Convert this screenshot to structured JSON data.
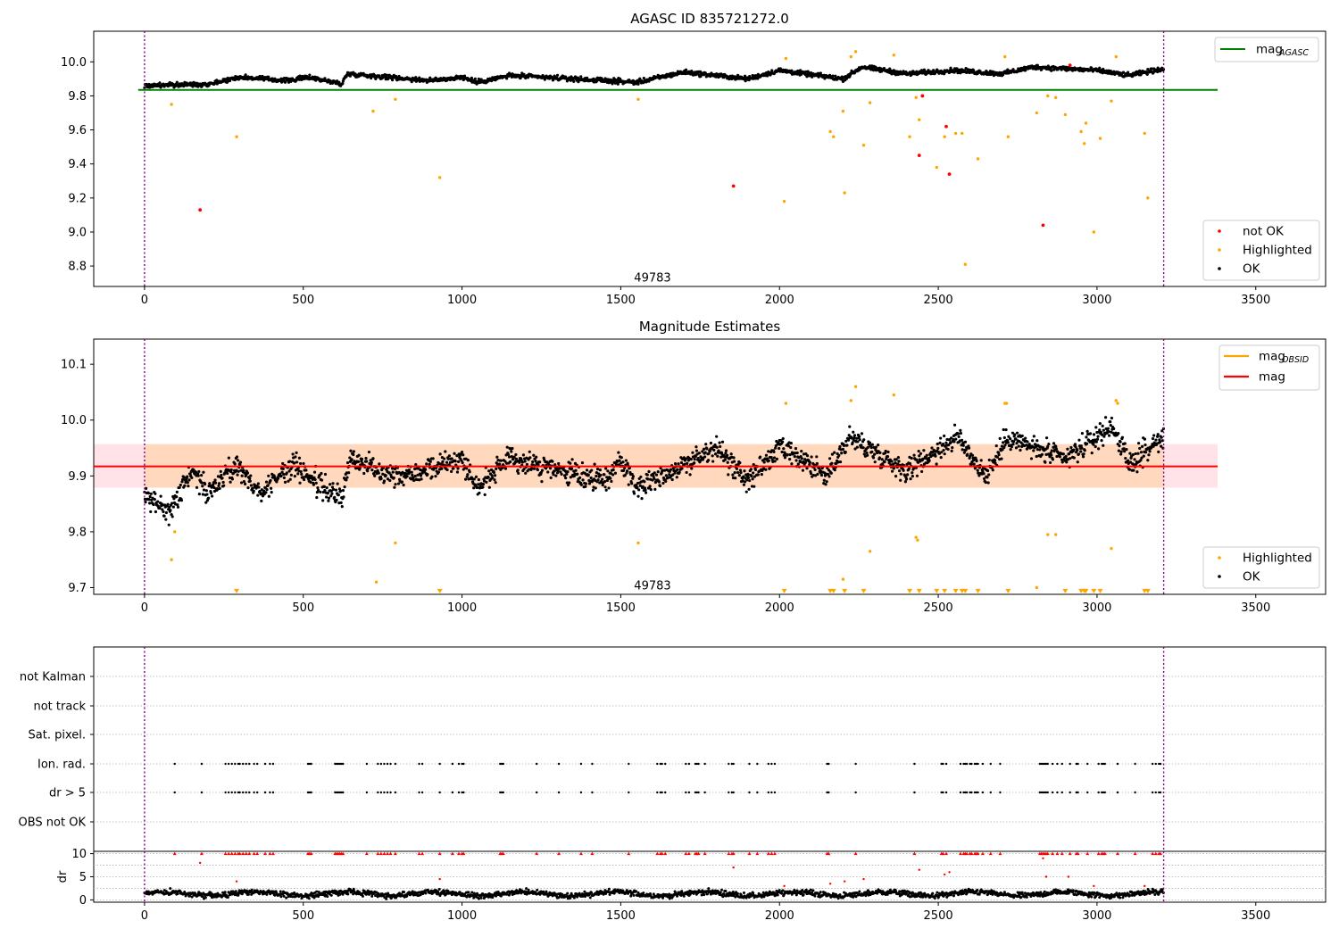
{
  "chart_data": [
    {
      "type": "scatter",
      "title": "AGASC ID 835721272.0",
      "xlim": [
        -160,
        3720
      ],
      "ylim": [
        8.68,
        10.18
      ],
      "x_ticks": [
        0,
        500,
        1000,
        1500,
        2000,
        2500,
        3000,
        3500
      ],
      "y_ticks": [
        8.8,
        9.0,
        9.2,
        9.4,
        9.6,
        9.8,
        10.0
      ],
      "obs_bounds": [
        0,
        3210
      ],
      "obsid_label": {
        "text": "49783",
        "x": 1600,
        "y": 8.73
      },
      "reference_line": {
        "name": "mag",
        "subscript": "AGASC",
        "y": 9.835,
        "x_range": [
          -20,
          3380
        ],
        "color": "#008000"
      },
      "ok_band": {
        "x_start": 0,
        "x_end": 3210,
        "baseline": [
          [
            0,
            9.86
          ],
          [
            200,
            9.87
          ],
          [
            300,
            9.91
          ],
          [
            450,
            9.89
          ],
          [
            520,
            9.91
          ],
          [
            620,
            9.87
          ],
          [
            640,
            9.93
          ],
          [
            900,
            9.89
          ],
          [
            1000,
            9.91
          ],
          [
            1050,
            9.88
          ],
          [
            1150,
            9.92
          ],
          [
            1550,
            9.88
          ],
          [
            1700,
            9.94
          ],
          [
            1900,
            9.9
          ],
          [
            2000,
            9.95
          ],
          [
            2200,
            9.9
          ],
          [
            2260,
            9.97
          ],
          [
            2400,
            9.93
          ],
          [
            2550,
            9.95
          ],
          [
            2700,
            9.93
          ],
          [
            2800,
            9.97
          ],
          [
            3000,
            9.95
          ],
          [
            3100,
            9.92
          ],
          [
            3210,
            9.96
          ]
        ],
        "scatter": 0.02
      },
      "series": [
        {
          "name": "not OK",
          "color": "#ff0000",
          "points": [
            [
              175,
              9.13
            ],
            [
              1855,
              9.27
            ],
            [
              2440,
              9.45
            ],
            [
              2525,
              9.62
            ],
            [
              2535,
              9.34
            ],
            [
              2830,
              9.04
            ],
            [
              2915,
              9.98
            ],
            [
              2450,
              9.8
            ]
          ]
        },
        {
          "name": "Highlighted",
          "color": "#ffa500",
          "points": [
            [
              85,
              9.75
            ],
            [
              290,
              9.56
            ],
            [
              720,
              9.71
            ],
            [
              790,
              9.78
            ],
            [
              930,
              9.32
            ],
            [
              1555,
              9.78
            ],
            [
              2015,
              9.18
            ],
            [
              2020,
              10.02
            ],
            [
              2160,
              9.59
            ],
            [
              2170,
              9.56
            ],
            [
              2200,
              9.71
            ],
            [
              2205,
              9.23
            ],
            [
              2225,
              10.03
            ],
            [
              2240,
              10.06
            ],
            [
              2265,
              9.51
            ],
            [
              2285,
              9.76
            ],
            [
              2360,
              10.04
            ],
            [
              2410,
              9.56
            ],
            [
              2430,
              9.79
            ],
            [
              2440,
              9.66
            ],
            [
              2495,
              9.38
            ],
            [
              2520,
              9.56
            ],
            [
              2555,
              9.58
            ],
            [
              2575,
              9.58
            ],
            [
              2585,
              8.81
            ],
            [
              2625,
              9.43
            ],
            [
              2710,
              10.03
            ],
            [
              2720,
              9.56
            ],
            [
              2810,
              9.7
            ],
            [
              2845,
              9.8
            ],
            [
              2870,
              9.79
            ],
            [
              2900,
              9.69
            ],
            [
              2950,
              9.59
            ],
            [
              2960,
              9.52
            ],
            [
              2965,
              9.64
            ],
            [
              2990,
              9.0
            ],
            [
              3010,
              9.55
            ],
            [
              3045,
              9.77
            ],
            [
              3060,
              10.03
            ],
            [
              3150,
              9.58
            ],
            [
              3160,
              9.2
            ]
          ]
        },
        {
          "name": "OK",
          "color": "#000000"
        }
      ],
      "legend": {
        "position": "lower right",
        "entries": [
          "not OK",
          "Highlighted",
          "OK"
        ]
      }
    },
    {
      "type": "scatter",
      "title": "Magnitude Estimates",
      "xlim": [
        -160,
        3720
      ],
      "ylim": [
        9.688,
        10.145
      ],
      "x_ticks": [
        0,
        500,
        1000,
        1500,
        2000,
        2500,
        3000,
        3500
      ],
      "y_ticks": [
        9.7,
        9.8,
        9.9,
        10.0,
        10.1
      ],
      "obs_bounds": [
        0,
        3210
      ],
      "obsid_label": {
        "text": "49783",
        "x": 1600,
        "y": 9.703
      },
      "mag_line": {
        "name": "mag",
        "y": 9.917,
        "x_range": [
          -160,
          3380
        ],
        "color": "#ff0000"
      },
      "mag_band": {
        "y_range": [
          9.879,
          9.957
        ],
        "x_range": [
          -160,
          3380
        ],
        "color": "#ffc0cb"
      },
      "obsid_line": {
        "name": "mag",
        "subscript": "OBSID",
        "y": 9.917,
        "x_range": [
          0,
          3210
        ],
        "color": "#ffa500"
      },
      "obsid_band": {
        "y_range": [
          9.879,
          9.957
        ],
        "x_range": [
          0,
          3210
        ],
        "color": "#ffa500"
      },
      "ok_band": {
        "x_start": 0,
        "x_end": 3210,
        "baseline": [
          [
            0,
            9.86
          ],
          [
            80,
            9.84
          ],
          [
            150,
            9.91
          ],
          [
            200,
            9.87
          ],
          [
            290,
            9.92
          ],
          [
            360,
            9.87
          ],
          [
            470,
            9.92
          ],
          [
            560,
            9.88
          ],
          [
            620,
            9.86
          ],
          [
            650,
            9.93
          ],
          [
            800,
            9.9
          ],
          [
            1000,
            9.93
          ],
          [
            1050,
            9.88
          ],
          [
            1150,
            9.93
          ],
          [
            1450,
            9.89
          ],
          [
            1500,
            9.93
          ],
          [
            1550,
            9.88
          ],
          [
            1700,
            9.92
          ],
          [
            1800,
            9.95
          ],
          [
            1900,
            9.89
          ],
          [
            2000,
            9.95
          ],
          [
            2150,
            9.9
          ],
          [
            2220,
            9.97
          ],
          [
            2400,
            9.91
          ],
          [
            2560,
            9.97
          ],
          [
            2650,
            9.9
          ],
          [
            2720,
            9.97
          ],
          [
            2800,
            9.95
          ],
          [
            2900,
            9.93
          ],
          [
            3050,
            9.99
          ],
          [
            3100,
            9.92
          ],
          [
            3210,
            9.97
          ]
        ],
        "scatter": 0.03
      },
      "series": [
        {
          "name": "Highlighted",
          "color": "#ffa500",
          "points": [
            [
              85,
              9.75
            ],
            [
              95,
              9.8
            ],
            [
              730,
              9.71
            ],
            [
              790,
              9.78
            ],
            [
              1555,
              9.78
            ],
            [
              2020,
              10.03
            ],
            [
              2200,
              9.715
            ],
            [
              2225,
              10.035
            ],
            [
              2240,
              10.06
            ],
            [
              2285,
              9.765
            ],
            [
              2360,
              10.045
            ],
            [
              2430,
              9.79
            ],
            [
              2435,
              9.785
            ],
            [
              2710,
              10.03
            ],
            [
              2715,
              10.03
            ],
            [
              2810,
              9.7
            ],
            [
              2845,
              9.795
            ],
            [
              2870,
              9.795
            ],
            [
              3045,
              9.77
            ],
            [
              3060,
              10.035
            ],
            [
              3065,
              10.03
            ]
          ]
        },
        {
          "name": "OK",
          "color": "#000000"
        }
      ],
      "clipped_markers": {
        "y": 9.693,
        "color": "#ffa500",
        "x": [
          290,
          930,
          2015,
          2160,
          2170,
          2205,
          2265,
          2410,
          2440,
          2495,
          2520,
          2555,
          2575,
          2585,
          2625,
          2720,
          2900,
          2950,
          2960,
          2965,
          2990,
          3010,
          3150,
          3160
        ]
      },
      "legend_top": {
        "position": "upper right",
        "entries": [
          {
            "name": "mag",
            "subscript": "OBSID"
          },
          {
            "name": "mag"
          }
        ]
      },
      "legend_bottom": {
        "position": "lower right",
        "entries": [
          "Highlighted",
          "OK"
        ]
      }
    },
    {
      "type": "scatter",
      "xlim": [
        -160,
        3720
      ],
      "x_ticks": [
        0,
        500,
        1000,
        1500,
        2000,
        2500,
        3000,
        3500
      ],
      "obs_bounds": [
        0,
        3210
      ],
      "flag_rows": [
        "not Kalman",
        "not track",
        "Sat. pixel.",
        "Ion. rad.",
        "dr > 5",
        "OBS not OK"
      ],
      "flag_x": [
        95,
        180,
        255,
        265,
        275,
        285,
        295,
        300,
        310,
        320,
        330,
        345,
        355,
        380,
        395,
        405,
        515,
        520,
        525,
        600,
        605,
        610,
        615,
        620,
        625,
        700,
        735,
        745,
        755,
        765,
        775,
        790,
        865,
        875,
        930,
        970,
        990,
        1000,
        1005,
        1120,
        1125,
        1130,
        1235,
        1305,
        1375,
        1410,
        1525,
        1615,
        1625,
        1630,
        1640,
        1705,
        1715,
        1735,
        1740,
        1745,
        1765,
        1840,
        1850,
        1855,
        1905,
        1930,
        1965,
        1975,
        1985,
        2150,
        2155,
        2240,
        2425,
        2510,
        2515,
        2525,
        2570,
        2580,
        2585,
        2590,
        2600,
        2605,
        2615,
        2620,
        2625,
        2640,
        2665,
        2695,
        2820,
        2825,
        2830,
        2835,
        2840,
        2845,
        2860,
        2875,
        2890,
        2915,
        2935,
        2940,
        2970,
        3005,
        3015,
        3020,
        3025,
        3065,
        3120,
        3175,
        3185,
        3195,
        3200
      ],
      "flag_rows_marked": [
        "Ion. rad.",
        "dr > 5"
      ],
      "dr_axis": {
        "ylabel": "dr",
        "y_ticks": [
          0,
          5,
          10
        ],
        "ylim": [
          -0.5,
          10.5
        ]
      },
      "dr_clipped_red": {
        "y": 10,
        "color": "#ff0000"
      },
      "dr_red_points": [
        [
          175,
          8
        ],
        [
          290,
          4
        ],
        [
          930,
          4.5
        ],
        [
          1855,
          7
        ],
        [
          2015,
          3
        ],
        [
          2160,
          3.5
        ],
        [
          2205,
          4
        ],
        [
          2265,
          4.5
        ],
        [
          2440,
          6.5
        ],
        [
          2520,
          5.5
        ],
        [
          2535,
          6
        ],
        [
          2830,
          9
        ],
        [
          2840,
          5
        ],
        [
          2910,
          5
        ],
        [
          2990,
          3
        ],
        [
          3150,
          3
        ]
      ],
      "dr_black": {
        "x_start": 0,
        "x_end": 3210,
        "level": 1.3,
        "scatter": 0.9
      }
    }
  ]
}
